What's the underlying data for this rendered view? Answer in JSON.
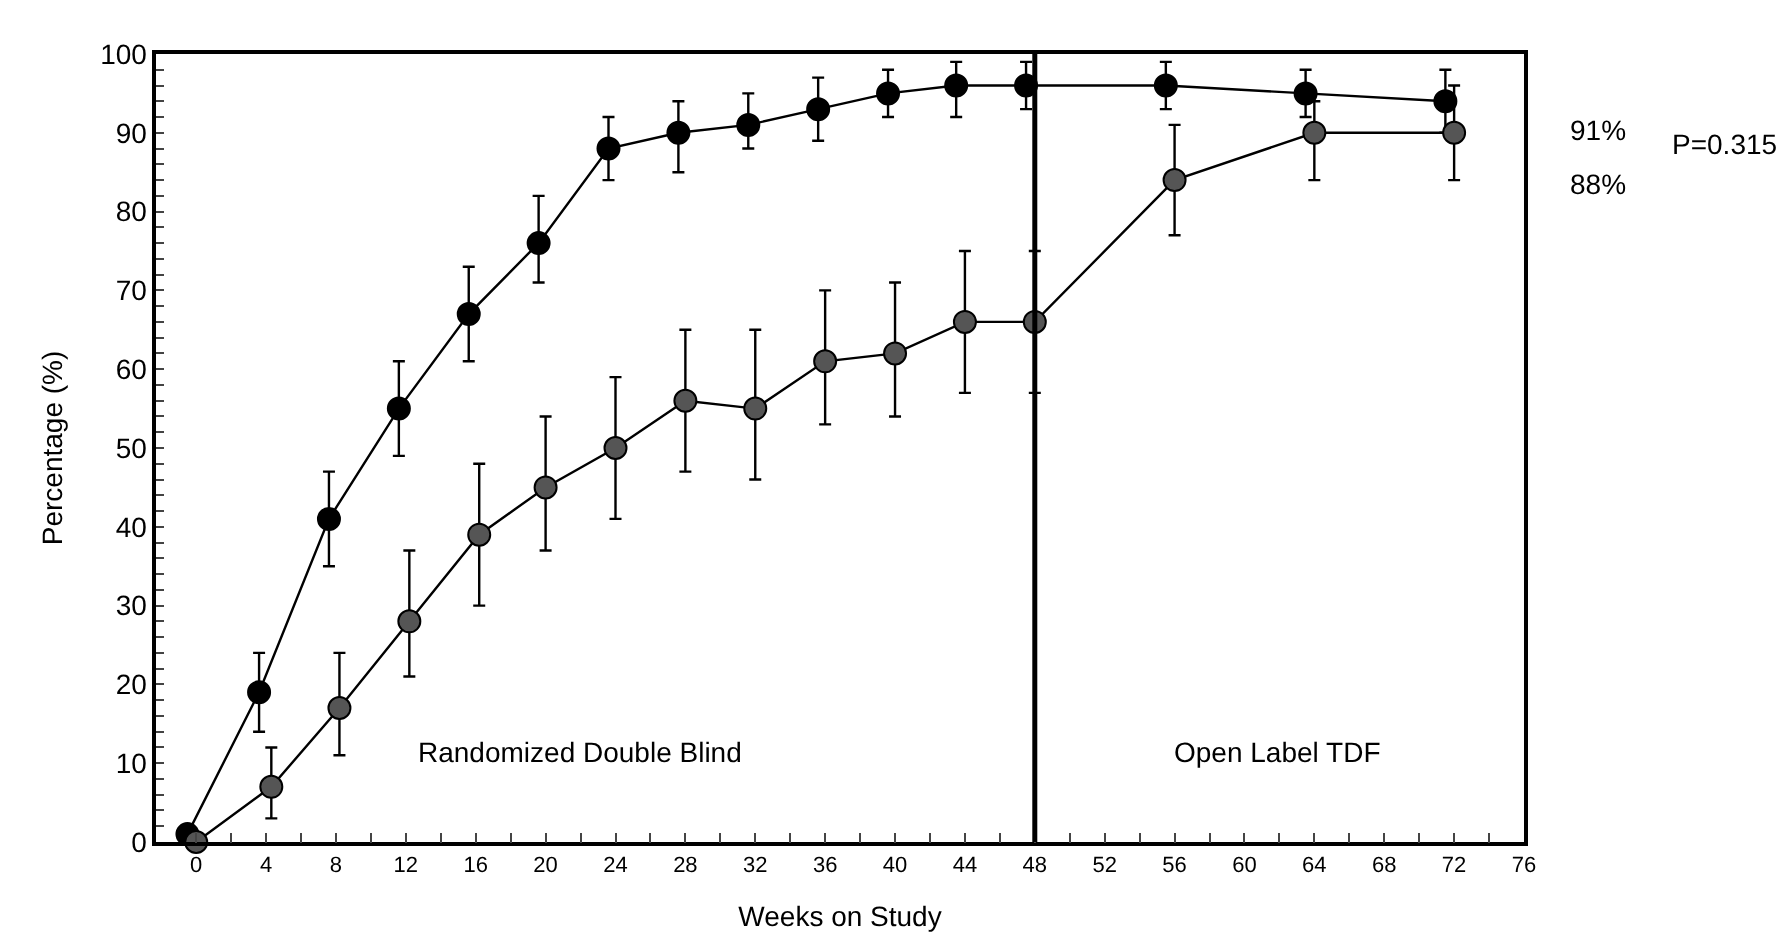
{
  "chart_data": {
    "type": "line",
    "xlabel": "Weeks on Study",
    "ylabel": "Percentage (%)",
    "xlim": [
      -2.3,
      76
    ],
    "ylim": [
      0,
      100
    ],
    "xticks": [
      0,
      {
        "value": 2,
        "label": null
      },
      4,
      {
        "value": 6,
        "label": null
      },
      8,
      {
        "value": 10,
        "label": null
      },
      12,
      {
        "value": 14,
        "label": null
      },
      16,
      {
        "value": 18,
        "label": null
      },
      20,
      {
        "value": 22,
        "label": null
      },
      24,
      {
        "value": 26,
        "label": null
      },
      28,
      {
        "value": 30,
        "label": null
      },
      32,
      {
        "value": 34,
        "label": null
      },
      36,
      {
        "value": 38,
        "label": null
      },
      40,
      {
        "value": 42,
        "label": null
      },
      44,
      {
        "value": 46,
        "label": null
      },
      48,
      {
        "value": 50,
        "label": null
      },
      52,
      {
        "value": 54,
        "label": null
      },
      56,
      {
        "value": 58,
        "label": null
      },
      60,
      {
        "value": 62,
        "label": null
      },
      64,
      {
        "value": 66,
        "label": null
      },
      68,
      {
        "value": 70,
        "label": null
      },
      72,
      {
        "value": 74,
        "label": null
      },
      76
    ],
    "yticks": [
      0,
      {
        "value": 2,
        "label": null
      },
      {
        "value": 4,
        "label": null
      },
      {
        "value": 6,
        "label": null
      },
      {
        "value": 8,
        "label": null
      },
      10,
      {
        "value": 12,
        "label": null
      },
      {
        "value": 14,
        "label": null
      },
      {
        "value": 16,
        "label": null
      },
      {
        "value": 18,
        "label": null
      },
      20,
      {
        "value": 22,
        "label": null
      },
      {
        "value": 24,
        "label": null
      },
      {
        "value": 26,
        "label": null
      },
      {
        "value": 28,
        "label": null
      },
      30,
      {
        "value": 32,
        "label": null
      },
      {
        "value": 34,
        "label": null
      },
      {
        "value": 36,
        "label": null
      },
      {
        "value": 38,
        "label": null
      },
      40,
      {
        "value": 42,
        "label": null
      },
      {
        "value": 44,
        "label": null
      },
      {
        "value": 46,
        "label": null
      },
      {
        "value": 48,
        "label": null
      },
      50,
      {
        "value": 52,
        "label": null
      },
      {
        "value": 54,
        "label": null
      },
      {
        "value": 56,
        "label": null
      },
      {
        "value": 58,
        "label": null
      },
      60,
      {
        "value": 62,
        "label": null
      },
      {
        "value": 64,
        "label": null
      },
      {
        "value": 66,
        "label": null
      },
      {
        "value": 68,
        "label": null
      },
      70,
      {
        "value": 72,
        "label": null
      },
      {
        "value": 74,
        "label": null
      },
      {
        "value": 76,
        "label": null
      },
      {
        "value": 78,
        "label": null
      },
      80,
      {
        "value": 82,
        "label": null
      },
      {
        "value": 84,
        "label": null
      },
      {
        "value": 86,
        "label": null
      },
      {
        "value": 88,
        "label": null
      },
      90,
      {
        "value": 92,
        "label": null
      },
      {
        "value": 94,
        "label": null
      },
      {
        "value": 96,
        "label": null
      },
      {
        "value": 98,
        "label": null
      },
      100
    ],
    "marker": "circle",
    "line_style": "solid",
    "series": [
      {
        "color": "#000000",
        "x": [
          -0.5,
          3.6,
          7.6,
          11.6,
          15.6,
          19.6,
          23.6,
          27.6,
          31.6,
          35.6,
          39.6,
          43.5,
          47.5,
          55.5,
          63.5,
          71.5
        ],
        "values": [
          1,
          19,
          41,
          55,
          67,
          76,
          88,
          90,
          91,
          93,
          95,
          96,
          96,
          96,
          95,
          94
        ],
        "errors": [
          null,
          [
            14,
            24
          ],
          [
            35,
            47
          ],
          [
            49,
            61
          ],
          [
            61,
            73
          ],
          [
            71,
            82
          ],
          [
            84,
            92
          ],
          [
            85,
            94
          ],
          [
            88,
            95
          ],
          [
            89,
            97
          ],
          [
            92,
            98
          ],
          [
            92,
            99
          ],
          [
            93,
            99
          ],
          [
            93,
            99
          ],
          [
            92,
            98
          ],
          [
            90,
            98
          ]
        ]
      },
      {
        "color": "#555555",
        "x": [
          0,
          4.3,
          8.2,
          12.2,
          16.2,
          20,
          24,
          28,
          32,
          36,
          40,
          44,
          48,
          56,
          64,
          72
        ],
        "values": [
          0,
          7,
          17,
          28,
          39,
          45,
          50,
          56,
          55,
          61,
          62,
          66,
          66,
          84,
          90,
          90
        ],
        "errors": [
          null,
          [
            3,
            12
          ],
          [
            11,
            24
          ],
          [
            21,
            37
          ],
          [
            30,
            48
          ],
          [
            37,
            54
          ],
          [
            41,
            59
          ],
          [
            47,
            65
          ],
          [
            46,
            65
          ],
          [
            53,
            70
          ],
          [
            54,
            71
          ],
          [
            57,
            75
          ],
          [
            57,
            75
          ],
          [
            77,
            91
          ],
          [
            84,
            94
          ],
          [
            84,
            96
          ]
        ]
      }
    ],
    "ref_lines": [
      {
        "axis": "x",
        "value": 48,
        "color": "#000000"
      }
    ],
    "annotations": [
      "Randomized Double Blind",
      "Open Label TDF",
      "91%",
      "88%",
      "P=0.315"
    ]
  }
}
